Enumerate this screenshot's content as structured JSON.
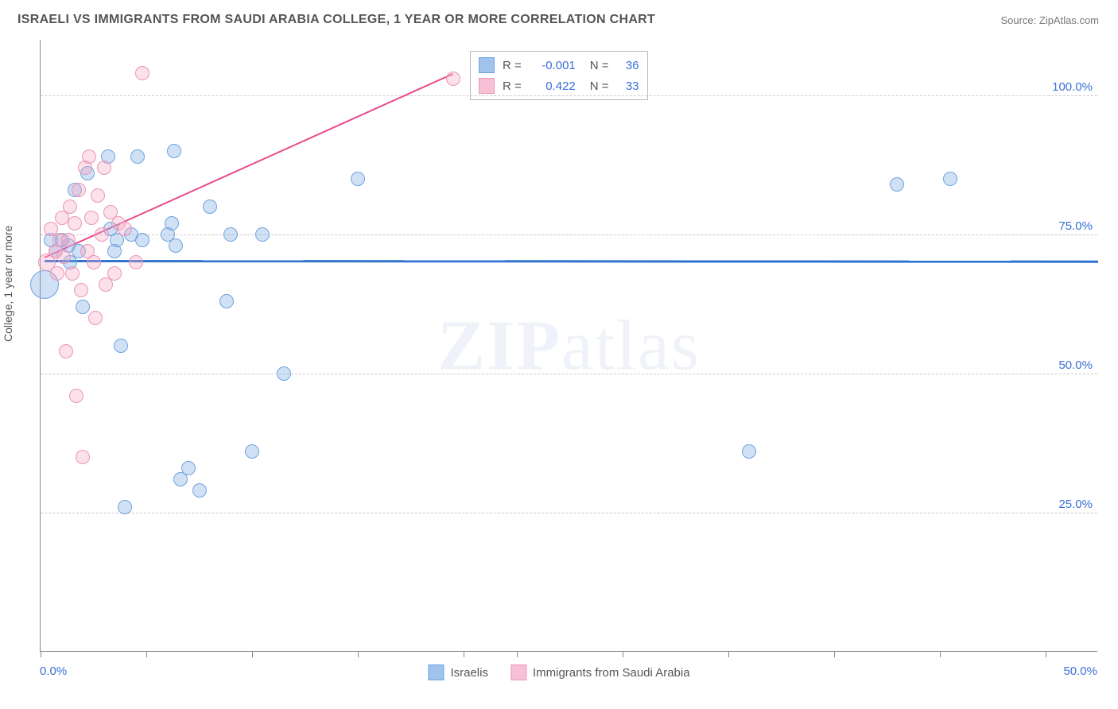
{
  "title": "ISRAELI VS IMMIGRANTS FROM SAUDI ARABIA COLLEGE, 1 YEAR OR MORE CORRELATION CHART",
  "source": "Source: ZipAtlas.com",
  "ylabel": "College, 1 year or more",
  "watermark": "ZIPatlas",
  "chart": {
    "type": "scatter",
    "background_color": "#ffffff",
    "grid_color": "#cccccc",
    "axis_color": "#888888",
    "label_color": "#3b6fd6",
    "title_color": "#555555",
    "title_fontsize": 16,
    "label_fontsize": 15,
    "xlim": [
      0,
      50
    ],
    "ylim": [
      0,
      110
    ],
    "xticks": [
      0,
      5,
      10,
      15,
      20,
      22.5,
      27.5,
      32.5,
      37.5,
      42.5,
      47.5
    ],
    "hgrids": [
      {
        "y": 25,
        "label": "25.0%"
      },
      {
        "y": 50,
        "label": "50.0%"
      },
      {
        "y": 75,
        "label": "75.0%"
      },
      {
        "y": 100,
        "label": "100.0%"
      }
    ],
    "xlabel_min": "0.0%",
    "xlabel_max": "50.0%",
    "marker_radius_default": 9,
    "series": [
      {
        "name": "Israelis",
        "color_fill": "rgba(120,170,230,0.35)",
        "color_stroke": "#6fa3df",
        "trend_color": "#2f74d0",
        "trend_width": 3,
        "correlation_R": "-0.001",
        "correlation_N": "36",
        "trend": {
          "x1": 0.2,
          "y1": 70.5,
          "x2": 50,
          "y2": 70.4
        },
        "points": [
          {
            "x": 0.2,
            "y": 66,
            "r": 18
          },
          {
            "x": 0.5,
            "y": 74
          },
          {
            "x": 0.7,
            "y": 72
          },
          {
            "x": 1.0,
            "y": 74
          },
          {
            "x": 1.3,
            "y": 73
          },
          {
            "x": 1.4,
            "y": 70
          },
          {
            "x": 1.6,
            "y": 83
          },
          {
            "x": 1.8,
            "y": 72
          },
          {
            "x": 2.0,
            "y": 62
          },
          {
            "x": 2.2,
            "y": 86
          },
          {
            "x": 3.2,
            "y": 89
          },
          {
            "x": 3.3,
            "y": 76
          },
          {
            "x": 3.5,
            "y": 72
          },
          {
            "x": 3.6,
            "y": 74
          },
          {
            "x": 3.8,
            "y": 55
          },
          {
            "x": 4.0,
            "y": 26
          },
          {
            "x": 4.3,
            "y": 75
          },
          {
            "x": 4.6,
            "y": 89
          },
          {
            "x": 4.8,
            "y": 74
          },
          {
            "x": 6.0,
            "y": 75
          },
          {
            "x": 6.2,
            "y": 77
          },
          {
            "x": 6.3,
            "y": 90
          },
          {
            "x": 6.4,
            "y": 73
          },
          {
            "x": 6.6,
            "y": 31
          },
          {
            "x": 7.0,
            "y": 33
          },
          {
            "x": 7.5,
            "y": 29
          },
          {
            "x": 8.0,
            "y": 80
          },
          {
            "x": 8.8,
            "y": 63
          },
          {
            "x": 9.0,
            "y": 75
          },
          {
            "x": 10.0,
            "y": 36
          },
          {
            "x": 10.5,
            "y": 75
          },
          {
            "x": 11.5,
            "y": 50
          },
          {
            "x": 15.0,
            "y": 85
          },
          {
            "x": 33.5,
            "y": 36
          },
          {
            "x": 40.5,
            "y": 84
          },
          {
            "x": 43.0,
            "y": 85
          }
        ]
      },
      {
        "name": "Immigrants from Saudi Arabia",
        "color_fill": "rgba(245,165,195,0.35)",
        "color_stroke": "#e996b8",
        "trend_color": "#ec4a8c",
        "trend_width": 2,
        "correlation_R": "0.422",
        "correlation_N": "33",
        "trend": {
          "x1": 0.2,
          "y1": 71,
          "x2": 19.5,
          "y2": 104
        },
        "points": [
          {
            "x": 0.3,
            "y": 70,
            "r": 11
          },
          {
            "x": 0.5,
            "y": 76
          },
          {
            "x": 0.7,
            "y": 72
          },
          {
            "x": 0.8,
            "y": 68
          },
          {
            "x": 0.9,
            "y": 74
          },
          {
            "x": 1.0,
            "y": 78
          },
          {
            "x": 1.1,
            "y": 71
          },
          {
            "x": 1.2,
            "y": 54
          },
          {
            "x": 1.3,
            "y": 74
          },
          {
            "x": 1.4,
            "y": 80
          },
          {
            "x": 1.5,
            "y": 68
          },
          {
            "x": 1.6,
            "y": 77
          },
          {
            "x": 1.7,
            "y": 46
          },
          {
            "x": 1.8,
            "y": 83
          },
          {
            "x": 1.9,
            "y": 65
          },
          {
            "x": 2.0,
            "y": 35
          },
          {
            "x": 2.1,
            "y": 87
          },
          {
            "x": 2.2,
            "y": 72
          },
          {
            "x": 2.3,
            "y": 89
          },
          {
            "x": 2.4,
            "y": 78
          },
          {
            "x": 2.5,
            "y": 70
          },
          {
            "x": 2.6,
            "y": 60
          },
          {
            "x": 2.7,
            "y": 82
          },
          {
            "x": 2.9,
            "y": 75
          },
          {
            "x": 3.0,
            "y": 87
          },
          {
            "x": 3.1,
            "y": 66
          },
          {
            "x": 3.3,
            "y": 79
          },
          {
            "x": 3.5,
            "y": 68
          },
          {
            "x": 3.7,
            "y": 77
          },
          {
            "x": 4.0,
            "y": 76
          },
          {
            "x": 4.5,
            "y": 70
          },
          {
            "x": 4.8,
            "y": 104
          },
          {
            "x": 19.5,
            "y": 103
          }
        ]
      }
    ],
    "bottom_legend": [
      {
        "swatch": "blue",
        "label": "Israelis"
      },
      {
        "swatch": "pink",
        "label": "Immigrants from Saudi Arabia"
      }
    ]
  }
}
